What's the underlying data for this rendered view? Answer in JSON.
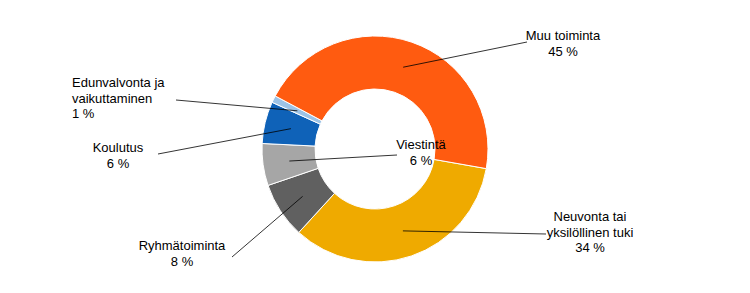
{
  "chart_data": {
    "type": "donut",
    "categories": [
      "Neuvonta tai yksilöllinen tuki",
      "Ryhmätoiminta",
      "Viestintä",
      "Koulutus",
      "Edunvalvonta ja vaikuttaminen",
      "Muu toiminta"
    ],
    "values": [
      34,
      8,
      6,
      6,
      1,
      45
    ],
    "value_labels": [
      "34 %",
      "8 %",
      "6 %",
      "6 %",
      "1 %",
      "45 %"
    ],
    "colors": [
      "#efaa00",
      "#606060",
      "#a6a6a6",
      "#0f62b8",
      "#9dc3e6",
      "#ff5b10"
    ],
    "data_labels": true
  }
}
